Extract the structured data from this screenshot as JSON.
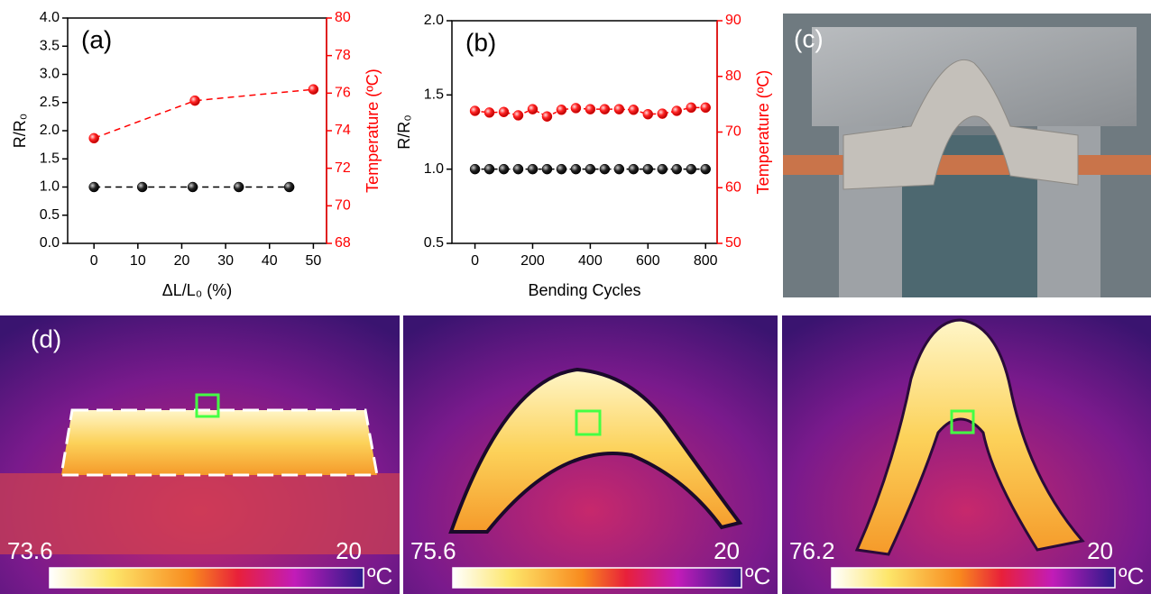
{
  "chart_data": [
    {
      "type": "line",
      "panel": "(a)",
      "x_label": "ΔL/L₀ (%)",
      "y_label": "R/R₀",
      "y2_label": "Temperature (ºC)",
      "xlim": [
        -6,
        53
      ],
      "xticks": [
        0,
        10,
        20,
        30,
        40,
        50
      ],
      "ylim": [
        0,
        4
      ],
      "yticks": [
        {
          "value": 0,
          "label": "0.0"
        },
        0.5,
        {
          "value": 1,
          "label": "1.0"
        },
        1.5,
        {
          "value": 2,
          "label": "2.0"
        },
        2.5,
        {
          "value": 3,
          "label": "3.0"
        },
        3.5,
        {
          "value": 4,
          "label": "4.0"
        }
      ],
      "y2lim": [
        68,
        80
      ],
      "y2ticks": [
        68,
        70,
        72,
        74,
        76,
        78,
        80
      ],
      "series": [
        {
          "color": "#000000",
          "x": [
            0,
            11,
            22.5,
            33,
            44.5
          ],
          "values": [
            1,
            1,
            1,
            1,
            1
          ]
        },
        {
          "color": "#ff0000",
          "axis": "y2",
          "x": [
            0,
            23,
            50
          ],
          "values": [
            73.6,
            75.6,
            76.2
          ]
        }
      ]
    },
    {
      "type": "line",
      "panel": "(b)",
      "x_label": "Bending Cycles",
      "y_label": "R/R₀",
      "y2_label": "Temperature (ºC)",
      "xlim": [
        -80,
        840
      ],
      "xticks": [
        0,
        200,
        400,
        600,
        800
      ],
      "ylim": [
        0.5,
        2
      ],
      "yticks": [
        0.5,
        {
          "value": 1,
          "label": "1.0"
        },
        1.5,
        {
          "value": 2,
          "label": "2.0"
        }
      ],
      "y2lim": [
        50,
        90
      ],
      "y2ticks": [
        50,
        60,
        70,
        80,
        90
      ],
      "series": [
        {
          "color": "#000000",
          "x": [
            0,
            50,
            100,
            150,
            200,
            250,
            300,
            350,
            400,
            450,
            500,
            550,
            600,
            650,
            700,
            750,
            800
          ],
          "values": [
            1,
            1,
            1,
            1,
            1,
            1,
            1,
            1,
            1,
            1,
            1,
            1,
            1,
            1,
            1,
            1,
            1
          ]
        },
        {
          "color": "#ff0000",
          "axis": "y2",
          "x": [
            0,
            50,
            100,
            150,
            200,
            250,
            300,
            350,
            400,
            450,
            500,
            550,
            600,
            650,
            700,
            750,
            800
          ],
          "values": [
            73.8,
            73.5,
            73.6,
            73,
            74.1,
            72.8,
            74,
            74.3,
            74.1,
            74.1,
            74.1,
            74,
            73.2,
            73.3,
            73.8,
            74.4,
            74.4
          ]
        }
      ]
    }
  ],
  "panel_c": "(c)",
  "panel_d": {
    "label": "(d)",
    "images": [
      {
        "max": 73.6,
        "min": 20,
        "unit": "ºC"
      },
      {
        "max": 75.6,
        "min": 20,
        "unit": "ºC"
      },
      {
        "max": 76.2,
        "min": 20,
        "unit": "ºC"
      }
    ]
  }
}
